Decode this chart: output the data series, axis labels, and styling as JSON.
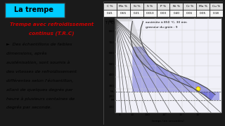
{
  "title_box": "La trempe",
  "body_text": [
    "►  Des échantillons de faibles",
    "dimensions, après",
    "austénisation, sont soumis à",
    "des vitesses de refroidissement",
    "différentes selon l'échantillon,",
    "allant de quelques degrés par",
    "heure à plusieurs centaines de",
    "degrés par seconde."
  ],
  "table_headers": [
    "C %",
    "Mn %",
    "Si %",
    "S %",
    "P %",
    "Ni %",
    "Cr %",
    "Mo %",
    "Cu %"
  ],
  "table_values": [
    "0.41",
    "0.65",
    "0.21",
    "0.013",
    "0.03",
    "0.40",
    "0.06",
    "0.05",
    "0.18"
  ],
  "diagram_title1": "austénite à 850 °C, 30 min",
  "diagram_title2": "grosseur du grain : 9",
  "ylabel": "T (°C)",
  "xlabel": "temps (en secondes)",
  "outer_bg": "#1a1a1a",
  "left_bg": "#c8cce0",
  "title_bg": "#00ccff",
  "subtitle_color": "#cc0000",
  "right_bg": "#ffffff",
  "subtitle_line1": "Trempe avec refroidissement",
  "subtitle_line2": "continus (T.R.C)"
}
